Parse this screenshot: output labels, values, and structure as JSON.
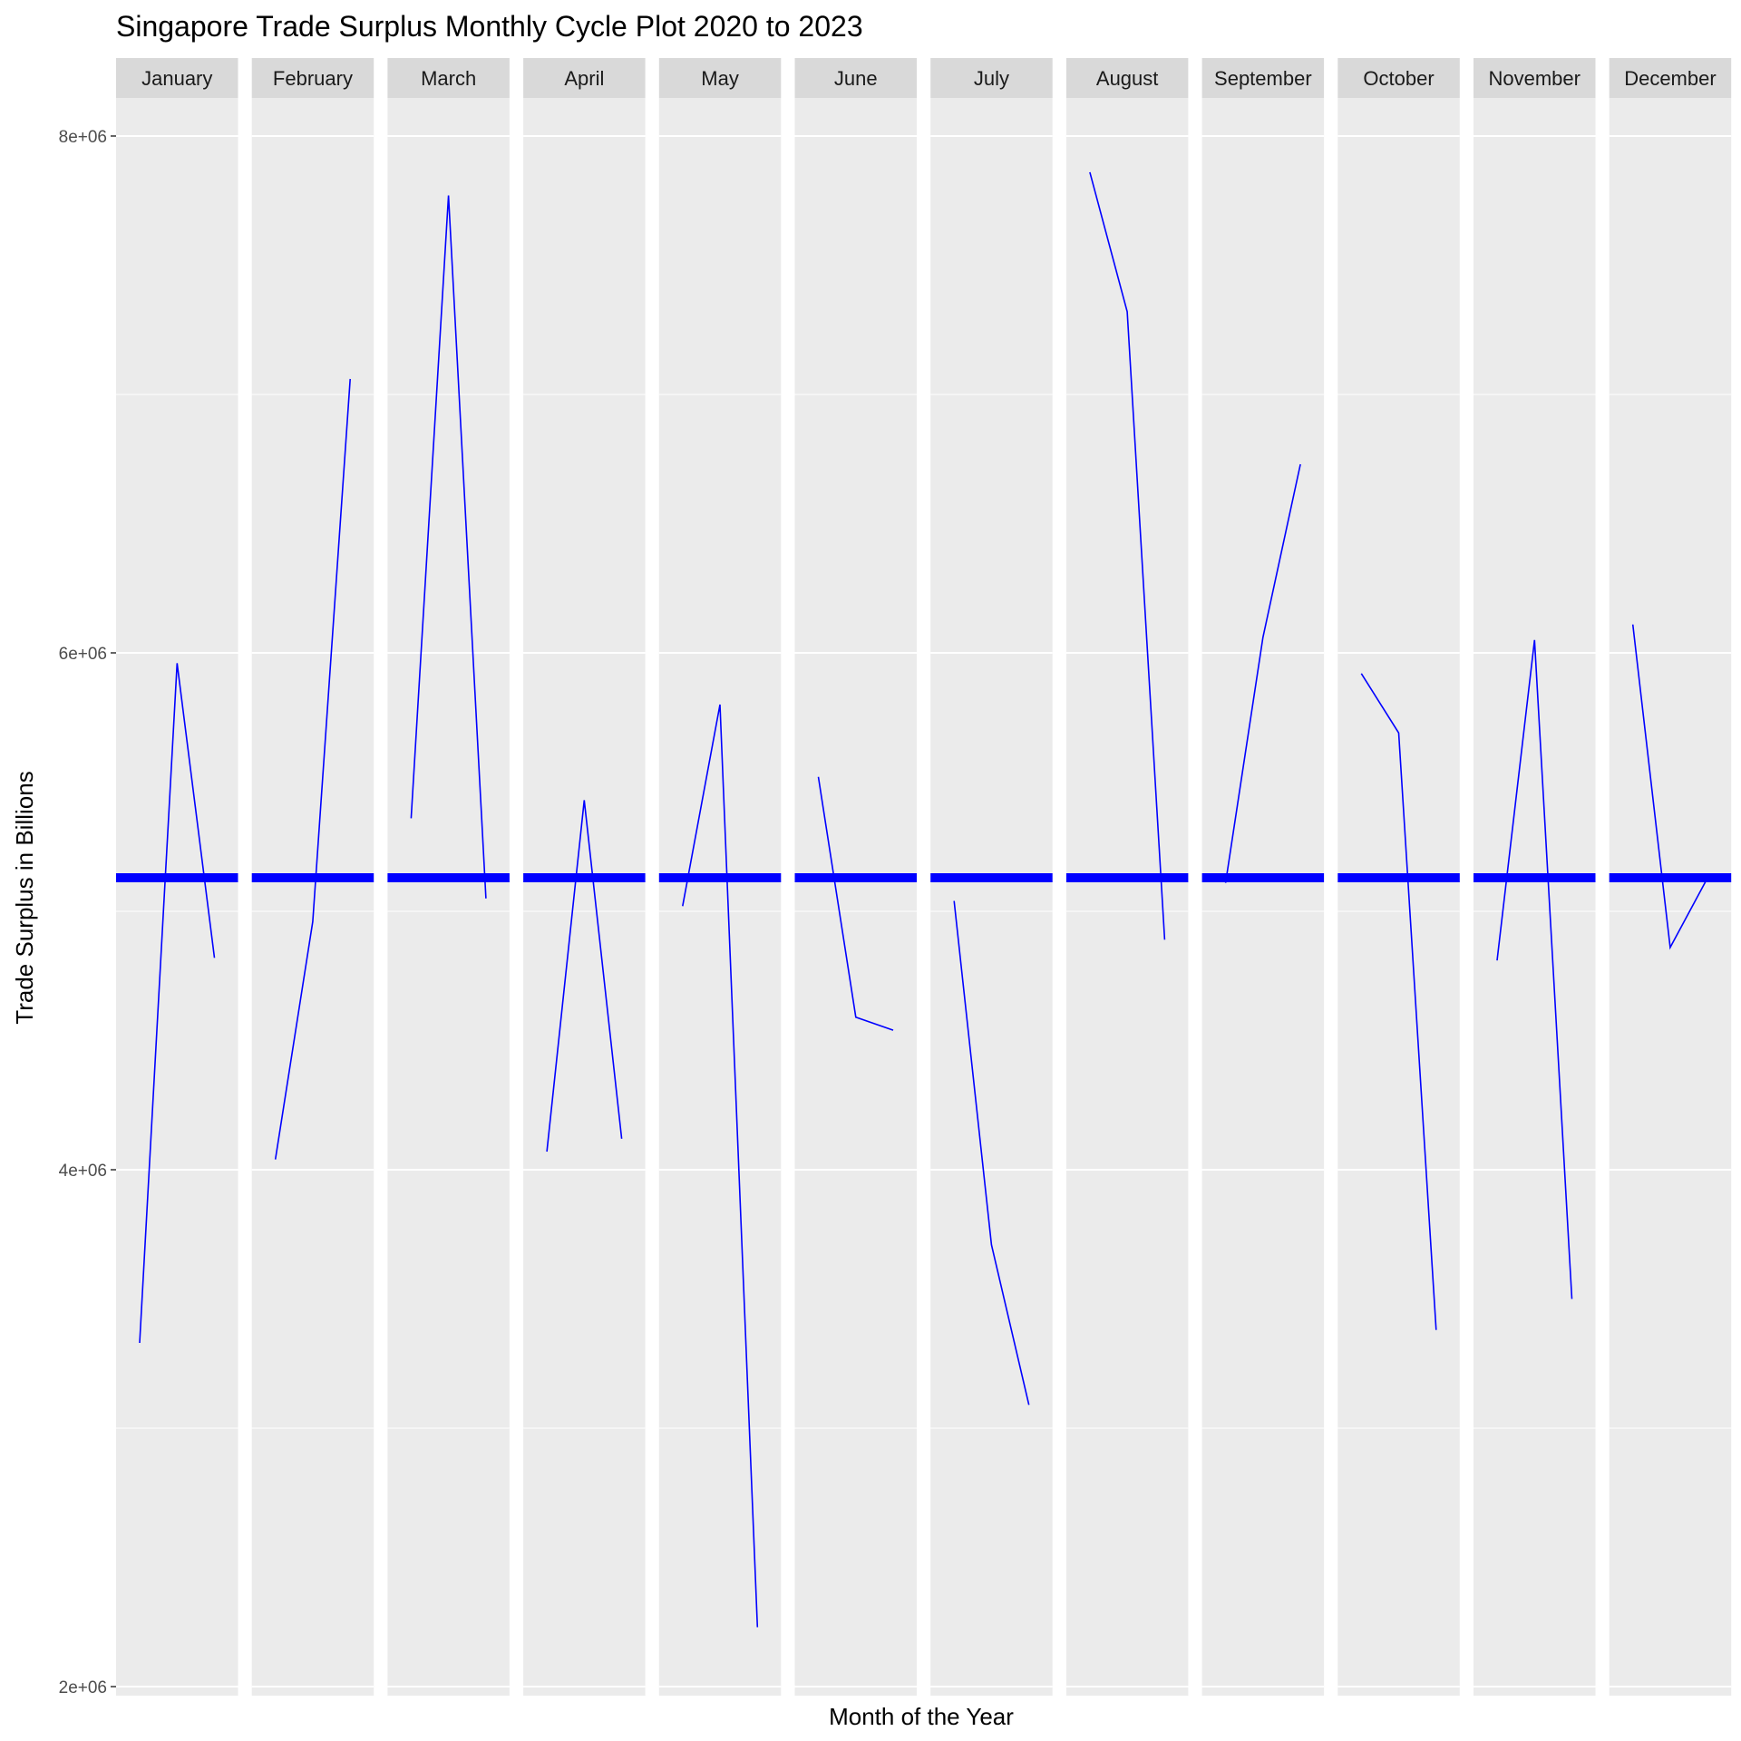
{
  "chart_data": {
    "type": "line",
    "title": "Singapore Trade Surplus Monthly Cycle Plot 2020 to 2023",
    "xlabel": "Month of the Year",
    "ylabel": "Trade Surplus in Billions",
    "ylim": [
      1950000,
      8300000
    ],
    "y_ticks": [
      2000000,
      4000000,
      6000000,
      8000000
    ],
    "y_tick_labels": [
      "2e+06",
      "4e+06",
      "6e+06",
      "8e+06"
    ],
    "grid": true,
    "facet_by": "month",
    "reference_line": {
      "value": 5130000,
      "color": "#0000ff"
    },
    "line_color": "#0000ff",
    "panel_background": "#ebebeb",
    "strip_background": "#d9d9d9",
    "panels": [
      {
        "month": "January",
        "values": [
          3330000,
          5960000,
          4820000
        ]
      },
      {
        "month": "February",
        "values": [
          4040000,
          4960000,
          7060000
        ]
      },
      {
        "month": "March",
        "values": [
          5360000,
          7770000,
          5050000
        ]
      },
      {
        "month": "April",
        "values": [
          4070000,
          5430000,
          4120000
        ]
      },
      {
        "month": "May",
        "values": [
          5020000,
          5800000,
          2230000
        ]
      },
      {
        "month": "June",
        "values": [
          5520000,
          4590000,
          4540000
        ]
      },
      {
        "month": "July",
        "values": [
          5040000,
          3710000,
          3090000
        ]
      },
      {
        "month": "August",
        "values": [
          7860000,
          7320000,
          4890000
        ]
      },
      {
        "month": "September",
        "values": [
          5110000,
          6060000,
          6730000
        ]
      },
      {
        "month": "October",
        "values": [
          5920000,
          5690000,
          3380000
        ]
      },
      {
        "month": "November",
        "values": [
          4810000,
          6050000,
          3500000
        ]
      },
      {
        "month": "December",
        "values": [
          6110000,
          4860000,
          5130000
        ]
      }
    ]
  }
}
